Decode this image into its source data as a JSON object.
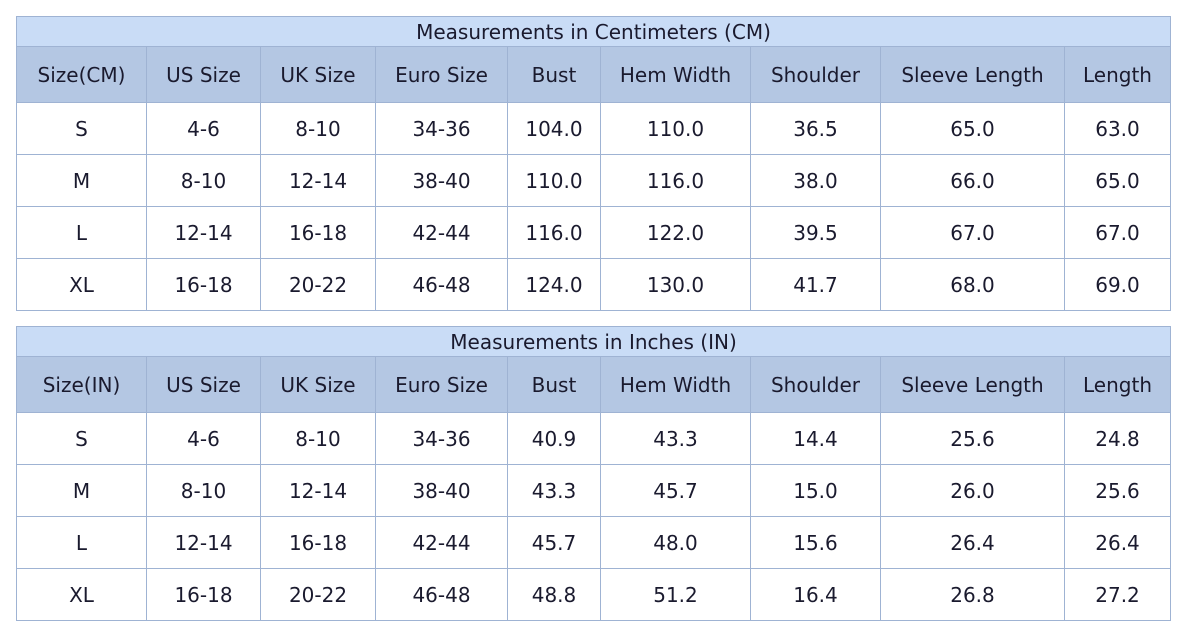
{
  "columns_cm": [
    "Size(CM)",
    "US Size",
    "UK Size",
    "Euro Size",
    "Bust",
    "Hem Width",
    "Shoulder",
    "Sleeve Length",
    "Length"
  ],
  "columns_in": [
    "Size(IN)",
    "US Size",
    "UK Size",
    "Euro Size",
    "Bust",
    "Hem Width",
    "Shoulder",
    "Sleeve Length",
    "Length"
  ],
  "tables": [
    {
      "title": "Measurements in Centimeters (CM)",
      "header_key": "columns_cm",
      "rows": [
        [
          "S",
          "4-6",
          "8-10",
          "34-36",
          "104.0",
          "110.0",
          "36.5",
          "65.0",
          "63.0"
        ],
        [
          "M",
          "8-10",
          "12-14",
          "38-40",
          "110.0",
          "116.0",
          "38.0",
          "66.0",
          "65.0"
        ],
        [
          "L",
          "12-14",
          "16-18",
          "42-44",
          "116.0",
          "122.0",
          "39.5",
          "67.0",
          "67.0"
        ],
        [
          "XL",
          "16-18",
          "20-22",
          "46-48",
          "124.0",
          "130.0",
          "41.7",
          "68.0",
          "69.0"
        ]
      ]
    },
    {
      "title": "Measurements in Inches (IN)",
      "header_key": "columns_in",
      "rows": [
        [
          "S",
          "4-6",
          "8-10",
          "34-36",
          "40.9",
          "43.3",
          "14.4",
          "25.6",
          "24.8"
        ],
        [
          "M",
          "8-10",
          "12-14",
          "38-40",
          "43.3",
          "45.7",
          "15.0",
          "26.0",
          "25.6"
        ],
        [
          "L",
          "12-14",
          "16-18",
          "42-44",
          "45.7",
          "48.0",
          "15.6",
          "26.4",
          "26.4"
        ],
        [
          "XL",
          "16-18",
          "20-22",
          "46-48",
          "48.8",
          "51.2",
          "16.4",
          "26.8",
          "27.2"
        ]
      ]
    }
  ]
}
